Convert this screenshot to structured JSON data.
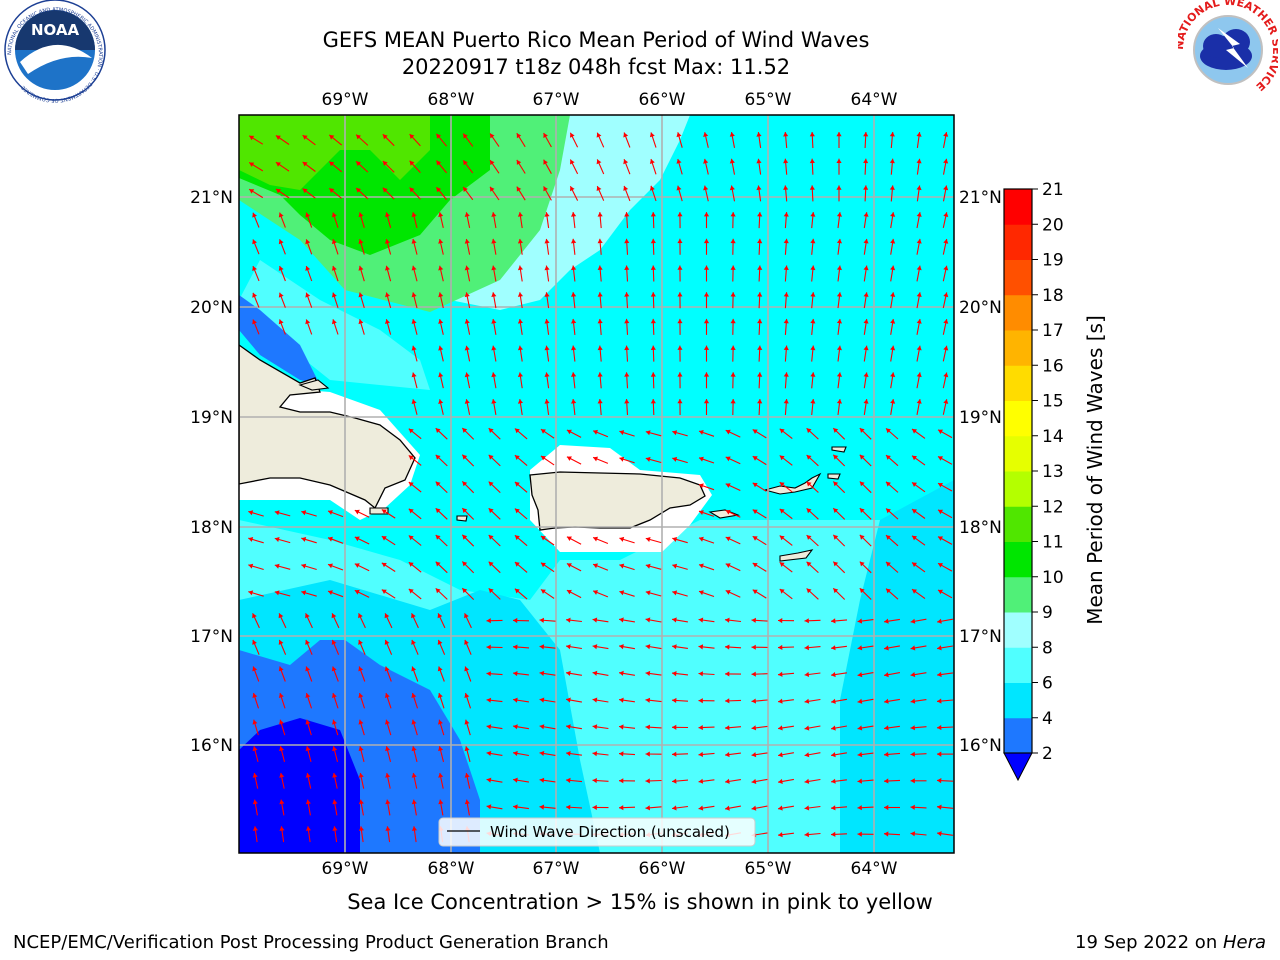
{
  "title": {
    "line1": "GEFS MEAN Puerto Rico Mean Period of Wind Waves",
    "line2": "20220917 t18z 048h fcst   Max: 11.52"
  },
  "logos": {
    "noaa_text": "NOAA",
    "noaa_ring_text": "NATIONAL OCEANIC AND ATMOSPHERIC ADMINISTRATION · U.S. DEPARTMENT OF COMMERCE",
    "nws_ring_text": "NATIONAL WEATHER SERVICE"
  },
  "map": {
    "lon_labels": [
      "69°W",
      "68°W",
      "67°W",
      "66°W",
      "65°W",
      "64°W"
    ],
    "lat_labels": [
      "21°N",
      "20°N",
      "19°N",
      "18°N",
      "17°N",
      "16°N"
    ],
    "legend_label": "Wind Wave Direction (unscaled)",
    "arrow_color": "#ff0000",
    "land_color": "#eeecdc",
    "gridline_color": "#b0b0b0"
  },
  "colorbar": {
    "label": "Mean Period of Wind Waves [s]",
    "ticks": [
      "2",
      "4",
      "6",
      "8",
      "9",
      "10",
      "11",
      "12",
      "13",
      "14",
      "15",
      "16",
      "17",
      "18",
      "19",
      "20",
      "21"
    ],
    "colors": [
      "#0000ff",
      "#1e78ff",
      "#00e6ff",
      "#50ffff",
      "#a0ffff",
      "#50f078",
      "#00e600",
      "#50e600",
      "#b4ff00",
      "#e6ff00",
      "#ffff00",
      "#ffdc00",
      "#ffb400",
      "#ff8c00",
      "#ff5000",
      "#ff2800",
      "#ff0000"
    ],
    "under_color": "#0000ff"
  },
  "subtitle": "Sea Ice Concentration > 15% is shown in pink to yellow",
  "footer": {
    "left": "NCEP/EMC/Verification Post Processing Product Generation Branch",
    "right_date": "19 Sep 2022 on ",
    "right_host": "Hera"
  }
}
